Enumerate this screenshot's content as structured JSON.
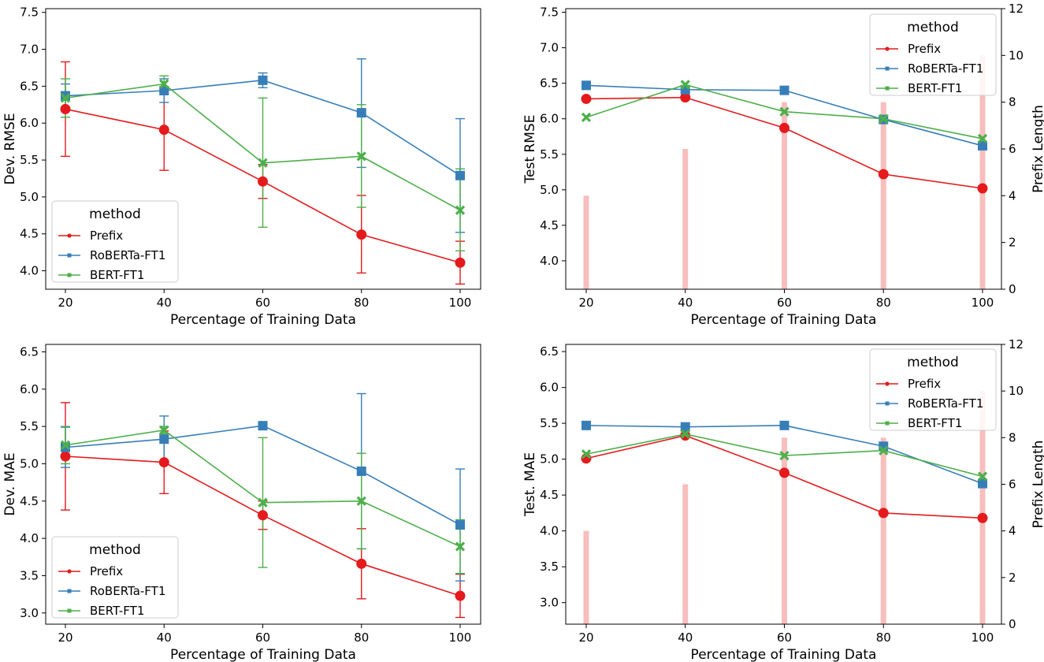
{
  "colors": {
    "Prefix": "#e41a1c",
    "RoBERTa-FT1": "#377eb8",
    "BERT-FT1": "#4daf4a",
    "prefix_bar": "#f4a8a8"
  },
  "chart_data": [
    {
      "type": "line",
      "title": "",
      "xlabel": "Percentage of Training Data",
      "ylabel": "Dev. RMSE",
      "x": [
        20,
        40,
        60,
        80,
        100
      ],
      "xticks": [
        "20",
        "40",
        "60",
        "80",
        "100"
      ],
      "ylim": [
        3.75,
        7.55
      ],
      "yticks": [
        "4.0",
        "4.5",
        "5.0",
        "5.5",
        "6.0",
        "6.5",
        "7.0",
        "7.5"
      ],
      "grid": false,
      "legend": {
        "title": "method",
        "position": "lower-left"
      },
      "series": [
        {
          "name": "Prefix",
          "marker": "circle",
          "values": [
            6.19,
            5.91,
            5.21,
            4.49,
            4.11
          ],
          "err_low": [
            5.55,
            5.36,
            4.98,
            3.97,
            3.82
          ],
          "err_high": [
            6.83,
            6.46,
            5.44,
            5.02,
            4.4
          ]
        },
        {
          "name": "RoBERTa-FT1",
          "marker": "square",
          "values": [
            6.37,
            6.44,
            6.58,
            6.14,
            5.29
          ],
          "err_low": [
            6.21,
            6.28,
            6.48,
            5.4,
            4.52
          ],
          "err_high": [
            6.53,
            6.6,
            6.68,
            6.87,
            6.06
          ]
        },
        {
          "name": "BERT-FT1",
          "marker": "x",
          "values": [
            6.34,
            6.53,
            5.46,
            5.55,
            4.82
          ],
          "err_low": [
            6.08,
            6.42,
            4.59,
            4.86,
            4.27
          ],
          "err_high": [
            6.6,
            6.64,
            6.34,
            6.25,
            5.38
          ]
        }
      ]
    },
    {
      "type": "line",
      "title": "",
      "xlabel": "Percentage of Training Data",
      "ylabel": "Test RMSE",
      "y2label": "Prefix Length",
      "x": [
        20,
        40,
        60,
        80,
        100
      ],
      "xticks": [
        "20",
        "40",
        "60",
        "80",
        "100"
      ],
      "ylim": [
        3.6,
        7.55
      ],
      "yticks": [
        "4.0",
        "4.5",
        "5.0",
        "5.5",
        "6.0",
        "6.5",
        "7.0",
        "7.5"
      ],
      "y2lim": [
        0,
        12
      ],
      "y2ticks": [
        "0",
        "2",
        "4",
        "6",
        "8",
        "10",
        "12"
      ],
      "grid": false,
      "legend": {
        "title": "method",
        "position": "upper-right"
      },
      "bars": {
        "name": "Prefix Length",
        "values": [
          4,
          6,
          8,
          8,
          10
        ]
      },
      "series": [
        {
          "name": "Prefix",
          "marker": "circle",
          "values": [
            6.28,
            6.3,
            5.87,
            5.22,
            5.02
          ]
        },
        {
          "name": "RoBERTa-FT1",
          "marker": "square",
          "values": [
            6.47,
            6.41,
            6.4,
            5.99,
            5.62
          ]
        },
        {
          "name": "BERT-FT1",
          "marker": "x",
          "values": [
            6.02,
            6.48,
            6.1,
            6.0,
            5.72
          ]
        }
      ]
    },
    {
      "type": "line",
      "title": "",
      "xlabel": "Percentage of Training Data",
      "ylabel": "Dev. MAE",
      "x": [
        20,
        40,
        60,
        80,
        100
      ],
      "xticks": [
        "20",
        "40",
        "60",
        "80",
        "100"
      ],
      "ylim": [
        2.85,
        6.6
      ],
      "yticks": [
        "3.0",
        "3.5",
        "4.0",
        "4.5",
        "5.0",
        "5.5",
        "6.0",
        "6.5"
      ],
      "grid": false,
      "legend": {
        "title": "method",
        "position": "lower-left"
      },
      "series": [
        {
          "name": "Prefix",
          "marker": "circle",
          "values": [
            5.1,
            5.02,
            4.31,
            3.66,
            3.23
          ],
          "err_low": [
            4.38,
            4.6,
            4.12,
            3.19,
            2.94
          ],
          "err_high": [
            5.82,
            5.44,
            4.5,
            4.13,
            3.52
          ]
        },
        {
          "name": "RoBERTa-FT1",
          "marker": "square",
          "values": [
            5.22,
            5.33,
            5.51,
            4.9,
            4.18
          ],
          "err_low": [
            4.95,
            5.02,
            5.48,
            3.86,
            3.43
          ],
          "err_high": [
            5.49,
            5.64,
            5.54,
            5.94,
            4.93
          ]
        },
        {
          "name": "BERT-FT1",
          "marker": "x",
          "values": [
            5.25,
            5.45,
            4.48,
            4.5,
            3.89
          ],
          "err_low": [
            5.0,
            5.4,
            3.61,
            3.86,
            3.53
          ],
          "err_high": [
            5.5,
            5.5,
            5.35,
            5.14,
            4.25
          ]
        }
      ]
    },
    {
      "type": "line",
      "title": "",
      "xlabel": "Percentage of Training Data",
      "ylabel": "Test. MAE",
      "y2label": "Prefix Length",
      "x": [
        20,
        40,
        60,
        80,
        100
      ],
      "xticks": [
        "20",
        "40",
        "60",
        "80",
        "100"
      ],
      "ylim": [
        2.7,
        6.6
      ],
      "yticks": [
        "3.0",
        "3.5",
        "4.0",
        "4.5",
        "5.0",
        "5.5",
        "6.0",
        "6.5"
      ],
      "y2lim": [
        0,
        12
      ],
      "y2ticks": [
        "0",
        "2",
        "4",
        "6",
        "8",
        "10",
        "12"
      ],
      "grid": false,
      "legend": {
        "title": "method",
        "position": "upper-right"
      },
      "bars": {
        "name": "Prefix Length",
        "values": [
          4,
          6,
          8,
          8,
          10
        ]
      },
      "series": [
        {
          "name": "Prefix",
          "marker": "circle",
          "values": [
            5.01,
            5.33,
            4.81,
            4.25,
            4.18
          ]
        },
        {
          "name": "RoBERTa-FT1",
          "marker": "square",
          "values": [
            5.47,
            5.45,
            5.47,
            5.18,
            4.66
          ]
        },
        {
          "name": "BERT-FT1",
          "marker": "x",
          "values": [
            5.07,
            5.35,
            5.05,
            5.12,
            4.76
          ]
        }
      ]
    }
  ]
}
